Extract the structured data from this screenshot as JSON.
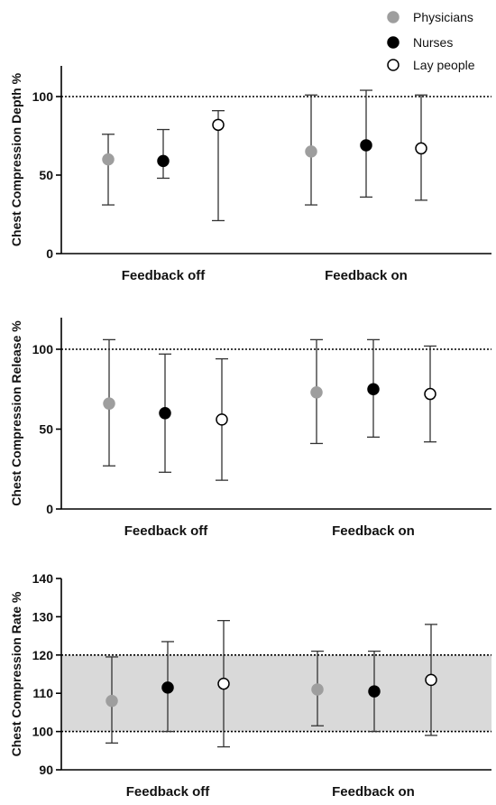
{
  "legend": {
    "entries": [
      {
        "name": "Physicians",
        "color": "#9e9e9e",
        "style": "filled"
      },
      {
        "name": "Nurses",
        "color": "#000000",
        "style": "filled"
      },
      {
        "name": "Lay people",
        "color": "#ffffff",
        "style": "hollow"
      }
    ]
  },
  "chart_data": [
    {
      "type": "errorbar",
      "ylabel": "Chest Compression Depth %",
      "categories": [
        "Feedback off",
        "Feedback on"
      ],
      "yticks": [
        0,
        50,
        100
      ],
      "ylim": [
        0,
        120
      ],
      "reference_lines": [
        100
      ],
      "series": [
        {
          "name": "Physicians",
          "values": [
            {
              "mean": 60,
              "low": 31,
              "high": 76
            },
            {
              "mean": 65,
              "low": 31,
              "high": 101
            }
          ]
        },
        {
          "name": "Nurses",
          "values": [
            {
              "mean": 59,
              "low": 48,
              "high": 79
            },
            {
              "mean": 69,
              "low": 36,
              "high": 104
            }
          ]
        },
        {
          "name": "Lay people",
          "values": [
            {
              "mean": 82,
              "low": 21,
              "high": 91
            },
            {
              "mean": 67,
              "low": 34,
              "high": 101
            }
          ]
        }
      ]
    },
    {
      "type": "errorbar",
      "ylabel": "Chest Compression Release %",
      "categories": [
        "Feedback off",
        "Feedback on"
      ],
      "yticks": [
        0,
        50,
        100
      ],
      "ylim": [
        0,
        120
      ],
      "reference_lines": [
        100
      ],
      "series": [
        {
          "name": "Physicians",
          "values": [
            {
              "mean": 66,
              "low": 27,
              "high": 106
            },
            {
              "mean": 73,
              "low": 41,
              "high": 106
            }
          ]
        },
        {
          "name": "Nurses",
          "values": [
            {
              "mean": 60,
              "low": 23,
              "high": 97
            },
            {
              "mean": 75,
              "low": 45,
              "high": 106
            }
          ]
        },
        {
          "name": "Lay people",
          "values": [
            {
              "mean": 56,
              "low": 18,
              "high": 94
            },
            {
              "mean": 72,
              "low": 42,
              "high": 102
            }
          ]
        }
      ]
    },
    {
      "type": "errorbar",
      "ylabel": "Chest Compression Rate %",
      "categories": [
        "Feedback off",
        "Feedback on"
      ],
      "yticks": [
        90,
        100,
        110,
        120,
        130,
        140
      ],
      "ylim": [
        90,
        140
      ],
      "reference_lines": [
        100,
        120
      ],
      "shaded_band": [
        100,
        120
      ],
      "series": [
        {
          "name": "Physicians",
          "values": [
            {
              "mean": 108,
              "low": 97,
              "high": 119.5
            },
            {
              "mean": 111,
              "low": 101.5,
              "high": 121
            }
          ]
        },
        {
          "name": "Nurses",
          "values": [
            {
              "mean": 111.5,
              "low": 100,
              "high": 123.5
            },
            {
              "mean": 110.5,
              "low": 100,
              "high": 121
            }
          ]
        },
        {
          "name": "Lay people",
          "values": [
            {
              "mean": 112.5,
              "low": 96,
              "high": 129
            },
            {
              "mean": 113.5,
              "low": 99,
              "high": 128
            }
          ]
        }
      ]
    }
  ]
}
